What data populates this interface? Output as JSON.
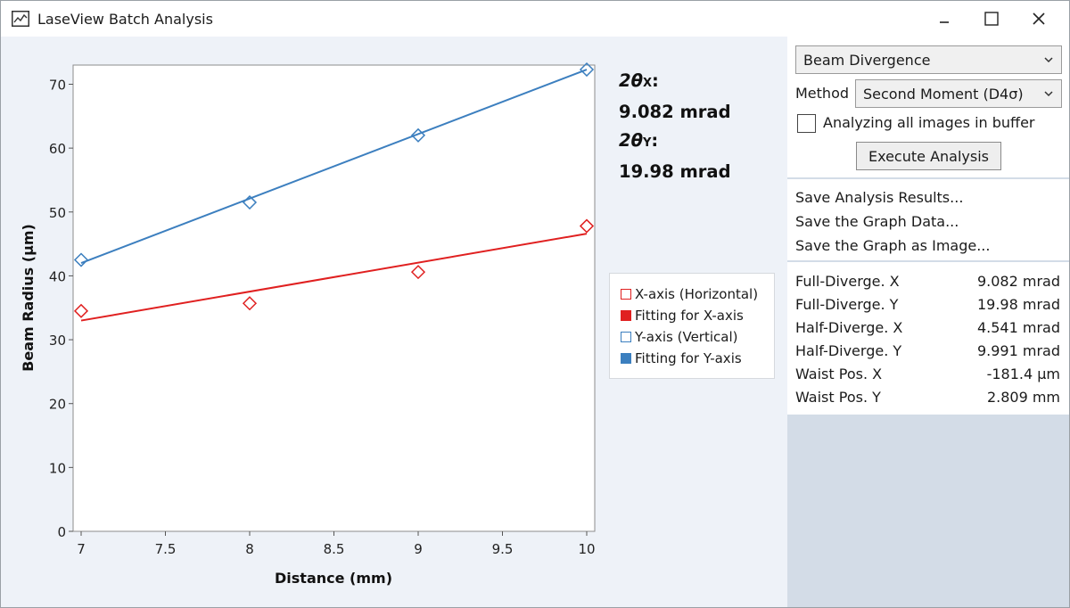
{
  "window": {
    "title": "LaseView Batch Analysis",
    "minimize_glyph": "‒",
    "maximize_glyph": "☐",
    "close_glyph": "✕"
  },
  "summary": {
    "x_symbol": "2θ",
    "x_sub": "X",
    "x_value": "9.082 mrad",
    "y_symbol": "2θ",
    "y_sub": "Y",
    "y_value": "19.98 mrad"
  },
  "legend": {
    "items": [
      {
        "label": "X-axis (Horizontal)",
        "swatch": "open",
        "color": "#e02020"
      },
      {
        "label": "Fitting for X-axis",
        "swatch": "filled",
        "color": "#e02020"
      },
      {
        "label": "Y-axis (Vertical)",
        "swatch": "open",
        "color": "#3c7fbf"
      },
      {
        "label": "Fitting for Y-axis",
        "swatch": "filled",
        "color": "#3c7fbf"
      }
    ]
  },
  "panel": {
    "analysis_type": "Beam Divergence",
    "method_label": "Method",
    "method_value": "Second Moment (D4σ)",
    "buffer_checkbox_label": "Analyzing all images in buffer",
    "buffer_checked": false,
    "execute_label": "Execute Analysis",
    "links": [
      "Save Analysis Results...",
      "Save the Graph Data...",
      "Save the Graph as Image..."
    ],
    "results": [
      {
        "key": "Full-Diverge. X",
        "value": "9.082 mrad"
      },
      {
        "key": "Full-Diverge. Y",
        "value": "19.98 mrad"
      },
      {
        "key": "Half-Diverge. X",
        "value": "4.541 mrad"
      },
      {
        "key": "Half-Diverge. Y",
        "value": "9.991 mrad"
      },
      {
        "key": "Waist Pos. X",
        "value": "-181.4 µm"
      },
      {
        "key": "Waist Pos. Y",
        "value": "2.809 mm"
      }
    ]
  },
  "chart_data": {
    "type": "scatter",
    "xlabel": "Distance (mm)",
    "ylabel": "Beam Radius (µm)",
    "xlim": [
      7,
      10
    ],
    "ylim": [
      0,
      73
    ],
    "x_ticks": [
      "7",
      "7.5",
      "8",
      "8.5",
      "9",
      "9.5",
      "10"
    ],
    "y_ticks": [
      "0",
      "10",
      "20",
      "30",
      "40",
      "50",
      "60",
      "70"
    ],
    "grid": false,
    "series": [
      {
        "name": "X-axis (Horizontal)",
        "color": "#e02020",
        "marker": "diamond-open",
        "x": [
          7,
          8,
          9,
          10
        ],
        "y": [
          34.5,
          35.7,
          40.6,
          47.8
        ]
      },
      {
        "name": "Fitting for X-axis",
        "color": "#e02020",
        "style": "line",
        "x": [
          7,
          10
        ],
        "y": [
          33.0,
          46.6
        ]
      },
      {
        "name": "Y-axis (Vertical)",
        "color": "#3c7fbf",
        "marker": "diamond-open",
        "x": [
          7,
          8,
          9,
          10
        ],
        "y": [
          42.5,
          51.5,
          62.0,
          72.3
        ]
      },
      {
        "name": "Fitting for Y-axis",
        "color": "#3c7fbf",
        "style": "line",
        "x": [
          7,
          10
        ],
        "y": [
          42.0,
          72.3
        ]
      }
    ]
  }
}
